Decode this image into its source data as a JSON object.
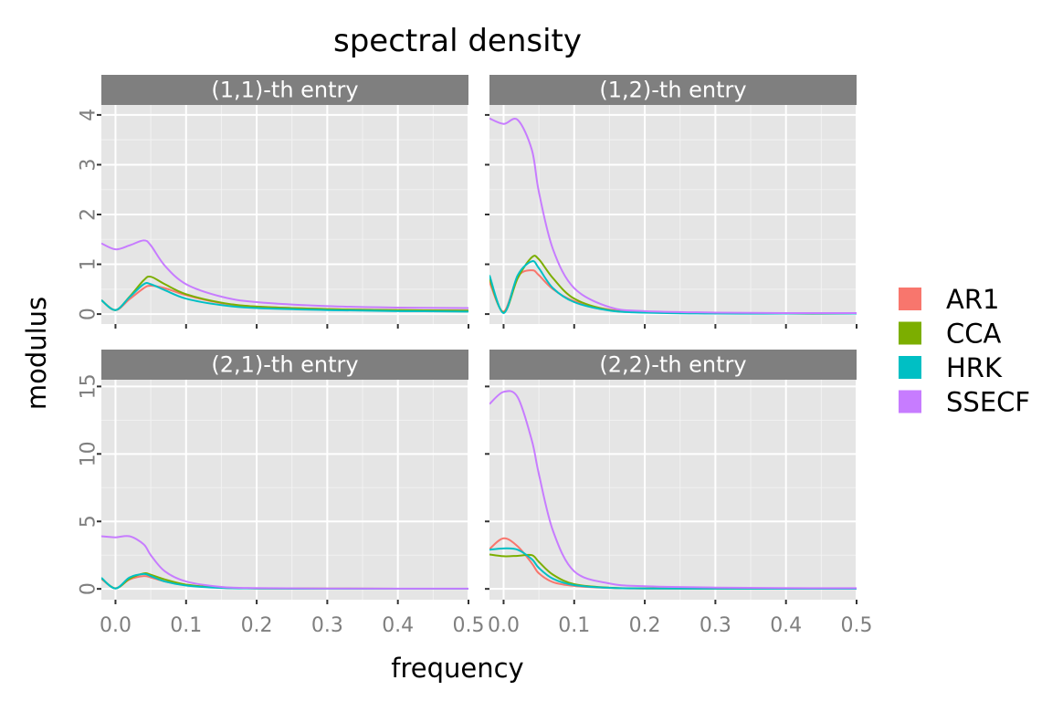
{
  "title": "spectral density",
  "xlabel": "frequency",
  "ylabel": "modulus",
  "legend": {
    "position": "right",
    "items": [
      {
        "name": "AR1",
        "color": "#F8766D"
      },
      {
        "name": "CCA",
        "color": "#7CAE00"
      },
      {
        "name": "HRK",
        "color": "#00BFC4"
      },
      {
        "name": "SSECF",
        "color": "#C77CFF"
      }
    ]
  },
  "chart_data": {
    "type": "line",
    "title": "spectral density",
    "xlabel": "frequency",
    "ylabel": "modulus",
    "grid": true,
    "xlim": [
      -0.02,
      0.5
    ],
    "x_ticks": [
      0.0,
      0.1,
      0.2,
      0.3,
      0.4,
      0.5
    ],
    "x_tick_labels": [
      "0.0",
      "0.1",
      "0.2",
      "0.3",
      "0.4",
      "0.5"
    ],
    "x": [
      -0.02,
      0.0,
      0.02,
      0.04,
      0.05,
      0.07,
      0.1,
      0.15,
      0.2,
      0.3,
      0.4,
      0.5
    ],
    "panels": [
      {
        "label": "(1,1)-th entry",
        "ylim": [
          -0.2,
          4.2
        ],
        "y_ticks": [
          0,
          1,
          2,
          3,
          4
        ],
        "y_tick_labels": [
          "0",
          "1",
          "2",
          "3",
          "4"
        ],
        "series": [
          {
            "name": "AR1",
            "values": [
              0.28,
              0.08,
              0.3,
              0.52,
              0.57,
              0.52,
              0.38,
              0.22,
              0.15,
              0.1,
              0.08,
              0.07
            ]
          },
          {
            "name": "CCA",
            "values": [
              0.28,
              0.08,
              0.35,
              0.68,
              0.75,
              0.6,
              0.4,
              0.23,
              0.15,
              0.1,
              0.08,
              0.07
            ]
          },
          {
            "name": "HRK",
            "values": [
              0.28,
              0.08,
              0.34,
              0.6,
              0.6,
              0.48,
              0.31,
              0.18,
              0.12,
              0.08,
              0.06,
              0.05
            ]
          },
          {
            "name": "SSECF",
            "values": [
              1.42,
              1.3,
              1.38,
              1.48,
              1.38,
              0.97,
              0.6,
              0.35,
              0.24,
              0.16,
              0.13,
              0.12
            ]
          }
        ]
      },
      {
        "label": "(1,2)-th entry",
        "ylim": [
          -0.2,
          4.2
        ],
        "y_ticks": [
          0,
          1,
          2,
          3,
          4
        ],
        "y_tick_labels": [
          "",
          "",
          "",
          "",
          ""
        ],
        "series": [
          {
            "name": "AR1",
            "values": [
              0.65,
              0.05,
              0.75,
              0.88,
              0.78,
              0.5,
              0.26,
              0.09,
              0.04,
              0.02,
              0.01,
              0.01
            ]
          },
          {
            "name": "CCA",
            "values": [
              0.72,
              0.03,
              0.72,
              1.14,
              1.1,
              0.72,
              0.31,
              0.08,
              0.04,
              0.02,
              0.01,
              0.01
            ]
          },
          {
            "name": "HRK",
            "values": [
              0.78,
              0.02,
              0.78,
              1.06,
              0.92,
              0.52,
              0.24,
              0.07,
              0.03,
              0.01,
              0.01,
              0.01
            ]
          },
          {
            "name": "SSECF",
            "values": [
              3.93,
              3.82,
              3.9,
              3.3,
              2.45,
              1.3,
              0.52,
              0.14,
              0.06,
              0.03,
              0.02,
              0.02
            ]
          }
        ]
      },
      {
        "label": "(2,1)-th entry",
        "ylim": [
          -0.8,
          15.5
        ],
        "y_ticks": [
          0,
          5,
          10,
          15
        ],
        "y_tick_labels": [
          "0",
          "5",
          "10",
          "15"
        ],
        "series": [
          {
            "name": "AR1",
            "values": [
              0.75,
              0.05,
              0.7,
              0.95,
              0.85,
              0.55,
              0.28,
              0.09,
              0.04,
              0.02,
              0.01,
              0.01
            ]
          },
          {
            "name": "CCA",
            "values": [
              0.8,
              0.04,
              0.75,
              1.15,
              1.05,
              0.7,
              0.32,
              0.09,
              0.04,
              0.02,
              0.01,
              0.01
            ]
          },
          {
            "name": "HRK",
            "values": [
              0.82,
              0.03,
              0.85,
              1.1,
              0.95,
              0.55,
              0.25,
              0.07,
              0.03,
              0.01,
              0.01,
              0.01
            ]
          },
          {
            "name": "SSECF",
            "values": [
              3.9,
              3.82,
              3.9,
              3.3,
              2.5,
              1.3,
              0.55,
              0.15,
              0.06,
              0.03,
              0.02,
              0.02
            ]
          }
        ]
      },
      {
        "label": "(2,2)-th entry",
        "ylim": [
          -0.8,
          15.5
        ],
        "y_ticks": [
          0,
          5,
          10,
          15
        ],
        "y_tick_labels": [
          "",
          "",
          "",
          ""
        ],
        "series": [
          {
            "name": "AR1",
            "values": [
              2.95,
              3.75,
              3.15,
              1.9,
              1.15,
              0.5,
              0.22,
              0.07,
              0.03,
              0.02,
              0.01,
              0.01
            ]
          },
          {
            "name": "CCA",
            "values": [
              2.55,
              2.42,
              2.45,
              2.5,
              2.0,
              1.05,
              0.35,
              0.09,
              0.04,
              0.02,
              0.01,
              0.01
            ]
          },
          {
            "name": "HRK",
            "values": [
              2.9,
              3.0,
              2.9,
              2.2,
              1.55,
              0.75,
              0.28,
              0.08,
              0.03,
              0.02,
              0.01,
              0.01
            ]
          },
          {
            "name": "SSECF",
            "values": [
              13.7,
              14.6,
              14.2,
              11.0,
              8.5,
              4.3,
              1.3,
              0.4,
              0.2,
              0.1,
              0.06,
              0.05
            ]
          }
        ]
      }
    ]
  }
}
